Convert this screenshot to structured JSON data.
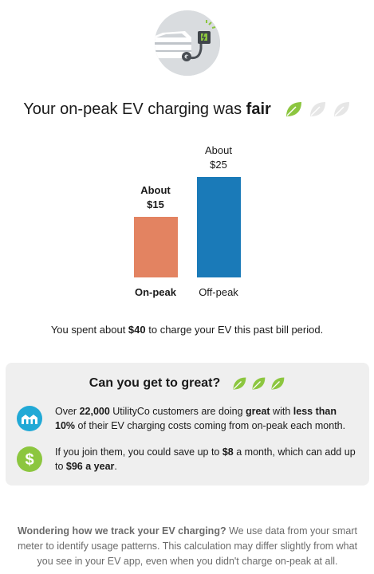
{
  "rating": {
    "prefix": "Your on-peak EV charging was ",
    "value": "fair",
    "leaves_filled": 1,
    "leaves_total": 3
  },
  "chart_data": {
    "type": "bar",
    "categories": [
      "On-peak",
      "Off-peak"
    ],
    "values": [
      15,
      25
    ],
    "value_labels": [
      [
        "About",
        "$15"
      ],
      [
        "About",
        "$25"
      ]
    ],
    "colors": [
      "#e38361",
      "#1a7ab8"
    ],
    "highlight_category": "On-peak",
    "ylim": [
      0,
      25
    ],
    "title": "",
    "xlabel": "",
    "ylabel": ""
  },
  "summary": {
    "before": "You spent about ",
    "amount": "$40",
    "after": " to charge your EV this past bill period."
  },
  "card": {
    "title": "Can you get to great?",
    "rows": [
      {
        "icon": "house-community-icon",
        "p1": "Over ",
        "b1": "22,000",
        "p2": " UtilityCo customers are doing ",
        "b2": "great",
        "p3": " with ",
        "b3": "less than 10%",
        "p4": " of their EV charging costs coming from on-peak each month."
      },
      {
        "icon": "dollar-icon",
        "p1": "If you join them, you could save up to ",
        "b1": "$8",
        "p2": " a month, which can add up to ",
        "b2": "$96 a year",
        "p3": "."
      }
    ]
  },
  "footer": {
    "bold": "Wondering how we track your EV charging?",
    "text": " We use data from your smart meter to identify usage patterns. This calculation may differ slightly from what you see in your EV app, even when you didn't charge on-peak at all."
  },
  "colors": {
    "leaf_filled": "#8cc63f",
    "leaf_empty": "#e6e6e6",
    "house_icon_bg": "#21a9d6",
    "dollar_icon_bg": "#8cc63f"
  }
}
